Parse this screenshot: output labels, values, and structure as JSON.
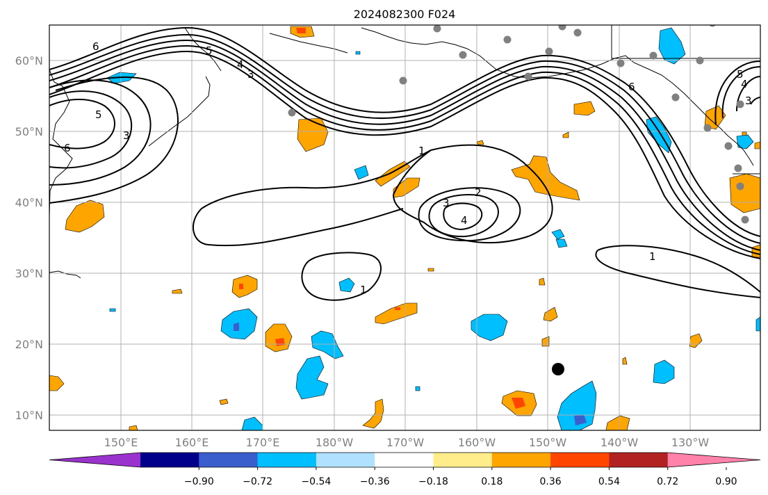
{
  "title": "2024082300 F024",
  "lat_labels": [
    "60°N",
    "50°N",
    "40°N",
    "30°N",
    "20°N",
    "10°N"
  ],
  "lon_labels": [
    "150°E",
    "160°E",
    "170°E",
    "180°W",
    "170°W",
    "160°W",
    "150°W",
    "140°W",
    "130°W"
  ],
  "colorbar": {
    "ticks": [
      "−0.90",
      "−0.72",
      "−0.54",
      "−0.36",
      "−0.18",
      "0.18",
      "0.36",
      "0.54",
      "0.72",
      "0.90"
    ],
    "colors": [
      "#9a32cd",
      "#00008b",
      "#3a5fcd",
      "#00bfff",
      "#b0e2ff",
      "#ffffff",
      "#ffec8b",
      "#ffa500",
      "#ff4500",
      "#b22222",
      "#ff82ab"
    ]
  },
  "contour_labels": [
    "6",
    "5",
    "4",
    "3",
    "6",
    "5",
    "3",
    "1",
    "2",
    "3",
    "4",
    "1",
    "1",
    "6",
    "5",
    "4",
    "3"
  ],
  "colors": {
    "positive": "#ffa500",
    "strong_positive": "#ff4500",
    "negative": "#00bfff",
    "strong_negative": "#3a5fcd",
    "grid": "#b0b0b0",
    "station_marker": "#808080"
  }
}
